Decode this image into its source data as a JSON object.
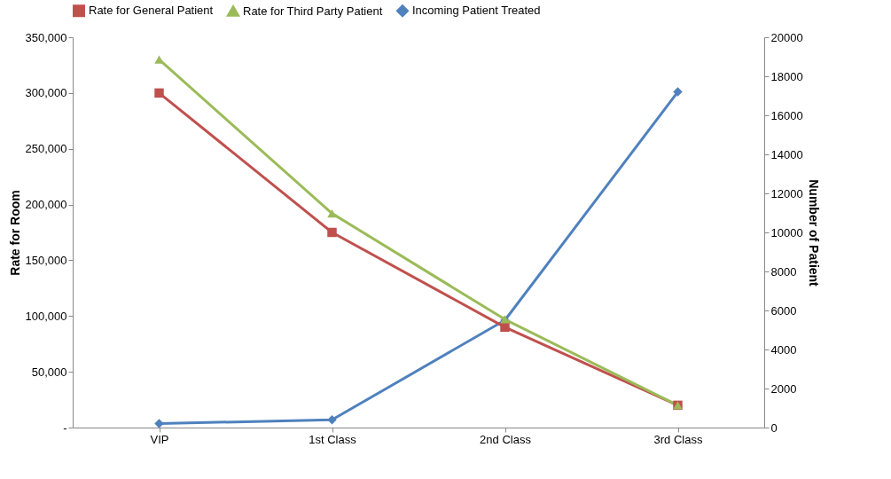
{
  "chart_data": {
    "type": "line",
    "ylabel": "Rate for Room",
    "y2label": "Number of Patient",
    "categories": [
      "VIP",
      "1st Class",
      "2nd Class",
      "3rd Class"
    ],
    "series": [
      {
        "name": "Rate for General Patient",
        "color": "#c0504d",
        "marker": "square",
        "values": [
          300000,
          175000,
          90000,
          20000
        ]
      },
      {
        "name": "Rate for Third Party Patient",
        "color": "#9bbb59",
        "marker": "triangle",
        "values": [
          330000,
          192000,
          97000,
          20000
        ]
      },
      {
        "name": "Incoming Patient Treated",
        "color": "#4f81bd",
        "marker": "diamond",
        "axis": "y2",
        "values": [
          200,
          400,
          5500,
          17200
        ]
      }
    ],
    "ylim": [
      0,
      350000
    ],
    "yticks": [
      {
        "value": 0,
        "label": "-"
      },
      {
        "value": 50000,
        "label": "50,000"
      },
      {
        "value": 100000,
        "label": "100,000"
      },
      {
        "value": 150000,
        "label": "150,000"
      },
      {
        "value": 200000,
        "label": "200,000"
      },
      {
        "value": 250000,
        "label": "250,000"
      },
      {
        "value": 300000,
        "label": "300,000"
      },
      {
        "value": 350000,
        "label": "350,000"
      }
    ],
    "y2lim": [
      0,
      20000
    ],
    "y2ticks": [
      0,
      2000,
      4000,
      6000,
      8000,
      10000,
      12000,
      14000,
      16000,
      18000,
      20000
    ],
    "legend": "top"
  }
}
